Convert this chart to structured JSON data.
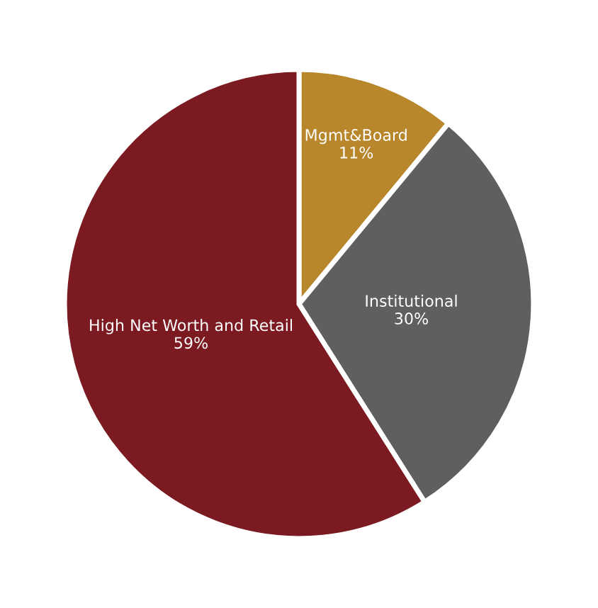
{
  "chart_data": {
    "type": "pie",
    "categories": [
      "Mgmt&Board",
      "Institutional",
      "High Net Worth and Retail"
    ],
    "values": [
      11,
      30,
      59
    ],
    "colors": [
      "#b8862b",
      "#5f5f5f",
      "#7b1a20"
    ],
    "value_labels": [
      "11%",
      "30%",
      "59%"
    ],
    "legend": false
  }
}
